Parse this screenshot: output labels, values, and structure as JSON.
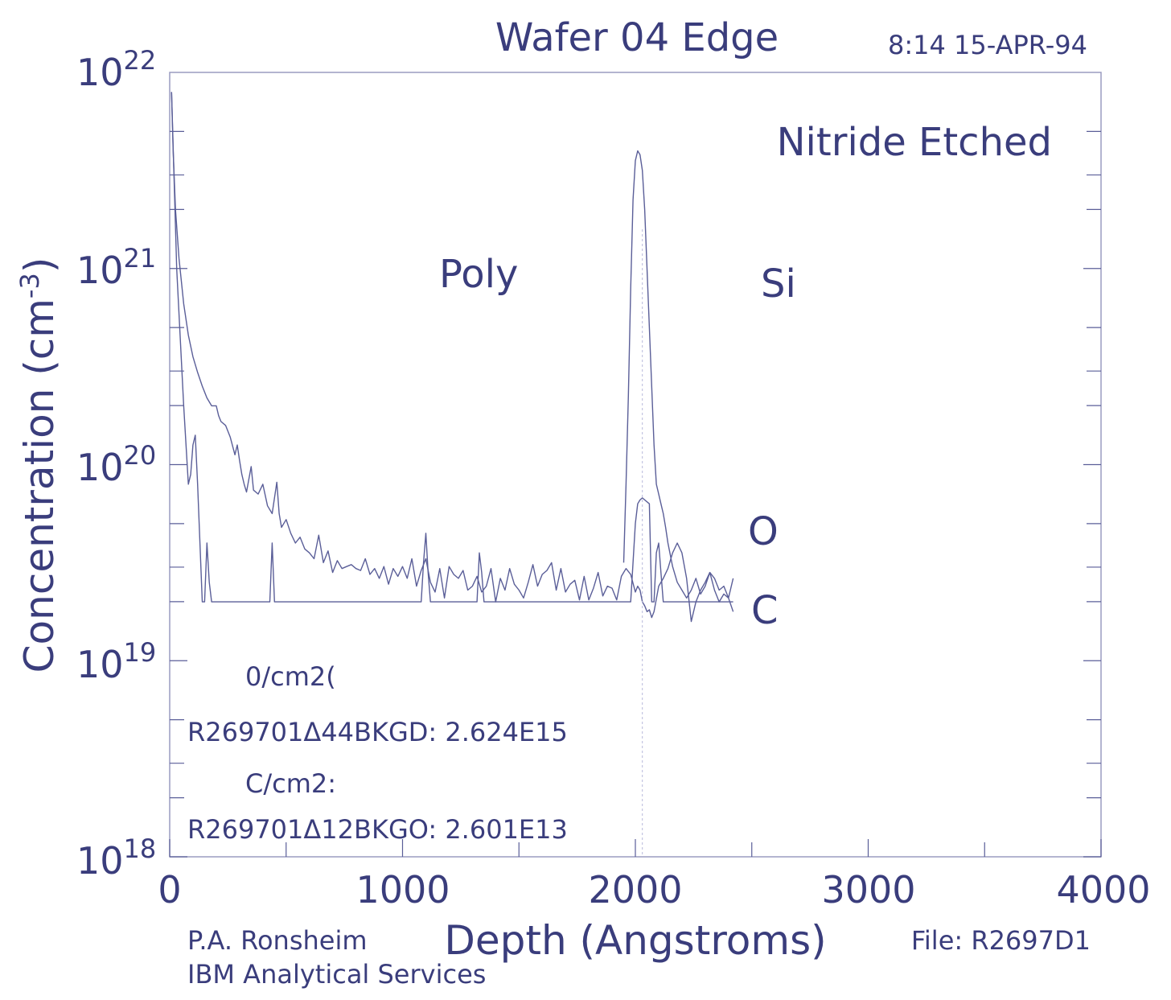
{
  "colors": {
    "ink": "#3a3d7c",
    "trace": "#5a5e98"
  },
  "header": {
    "title": "Wafer 04 Edge",
    "timestamp": "8:14 15-APR-94"
  },
  "annotations": {
    "condition": "Nitride Etched",
    "region_poly": "Poly",
    "region_si": "Si",
    "label_o": "O",
    "label_c": "C",
    "dose_o_header": "0/cm2(",
    "dose_o_value": "R269701Δ44BKGD: 2.624E15",
    "dose_c_header": "C/cm2:",
    "dose_c_value": "R269701Δ12BKGO: 2.601E13"
  },
  "footer": {
    "author": "P.A. Ronsheim",
    "org": "IBM Analytical Services",
    "file": "File: R2697D1"
  },
  "chart_data": {
    "type": "line",
    "title": "Wafer 04 Edge",
    "xlabel": "Depth (Angstroms)",
    "ylabel_main": "Concentration (cm",
    "ylabel_sup": "-3",
    "ylabel_close": ")",
    "xlim": [
      0,
      4000
    ],
    "ylim_log10": [
      18,
      22
    ],
    "y_scale": "log",
    "grid": false,
    "x_ticks": [
      "0",
      "1000",
      "2000",
      "3000",
      "4000"
    ],
    "y_ticks": [
      {
        "base": "10",
        "exp": "22"
      },
      {
        "base": "10",
        "exp": "21"
      },
      {
        "base": "10",
        "exp": "20"
      },
      {
        "base": "10",
        "exp": "19"
      },
      {
        "base": "10",
        "exp": "18"
      }
    ],
    "series": [
      {
        "name": "O",
        "x": [
          8,
          15,
          25,
          40,
          60,
          80,
          100,
          120,
          140,
          160,
          180,
          200,
          210,
          220,
          240,
          260,
          280,
          290,
          300,
          310,
          320,
          330,
          350,
          360,
          380,
          400,
          420,
          440,
          460,
          470,
          480,
          500,
          520,
          540,
          560,
          580,
          600,
          620,
          640,
          660,
          680,
          700,
          720,
          740,
          760,
          780,
          800,
          820,
          840,
          860,
          880,
          900,
          920,
          940,
          960,
          980,
          1000,
          1020,
          1040,
          1060,
          1080,
          1100,
          1120,
          1140,
          1160,
          1180,
          1200,
          1220,
          1240,
          1260,
          1280,
          1300,
          1320,
          1340,
          1360,
          1380,
          1400,
          1420,
          1440,
          1460,
          1480,
          1500,
          1520,
          1540,
          1560,
          1580,
          1600,
          1620,
          1640,
          1660,
          1680,
          1700,
          1720,
          1740,
          1760,
          1780,
          1800,
          1820,
          1840,
          1860,
          1880,
          1900,
          1920,
          1940,
          1960,
          1980,
          2000,
          2010,
          2020,
          2030,
          2040,
          2050,
          2060,
          2070,
          2080,
          2100,
          2120,
          2140,
          2160,
          2180,
          2200,
          2220,
          2240,
          2260,
          2280,
          2300,
          2320,
          2340,
          2360,
          2380,
          2400,
          2420
        ],
        "log10": [
          21.9,
          21.6,
          21.3,
          21.05,
          20.82,
          20.66,
          20.55,
          20.47,
          20.4,
          20.34,
          20.3,
          20.3,
          20.25,
          20.22,
          20.2,
          20.14,
          20.05,
          20.1,
          20.02,
          19.95,
          19.9,
          19.86,
          19.99,
          19.87,
          19.85,
          19.9,
          19.79,
          19.75,
          19.91,
          19.75,
          19.68,
          19.72,
          19.65,
          19.6,
          19.63,
          19.57,
          19.55,
          19.52,
          19.64,
          19.5,
          19.56,
          19.45,
          19.51,
          19.47,
          19.48,
          19.49,
          19.47,
          19.46,
          19.52,
          19.44,
          19.47,
          19.42,
          19.48,
          19.39,
          19.47,
          19.43,
          19.48,
          19.42,
          19.52,
          19.38,
          19.46,
          19.52,
          19.4,
          19.35,
          19.47,
          19.32,
          19.48,
          19.44,
          19.42,
          19.46,
          19.36,
          19.38,
          19.43,
          19.35,
          19.38,
          19.47,
          19.3,
          19.42,
          19.36,
          19.47,
          19.39,
          19.36,
          19.32,
          19.4,
          19.49,
          19.38,
          19.44,
          19.46,
          19.5,
          19.36,
          19.47,
          19.35,
          19.39,
          19.41,
          19.31,
          19.43,
          19.31,
          19.37,
          19.45,
          19.33,
          19.38,
          19.37,
          19.31,
          19.43,
          19.47,
          19.44,
          19.35,
          19.38,
          19.36,
          19.3,
          19.28,
          19.25,
          19.26,
          19.22,
          19.25,
          19.38,
          19.42,
          19.47,
          19.55,
          19.6,
          19.55,
          19.42,
          19.2,
          19.3,
          19.36,
          19.4,
          19.45,
          19.42,
          19.36,
          19.38,
          19.32,
          19.42,
          19.35,
          19.26
        ]
      },
      {
        "name": "Si",
        "x": [
          1950,
          1960,
          1970,
          1980,
          1990,
          2000,
          2010,
          2020,
          2030,
          2040,
          2050,
          2060,
          2070,
          2080,
          2090,
          2100,
          2110,
          2120,
          2130,
          2140,
          2160,
          2180,
          2200,
          2220,
          2240,
          2260,
          2280,
          2300,
          2320,
          2340,
          2360,
          2380,
          2400,
          2420
        ],
        "log10": [
          19.5,
          19.9,
          20.35,
          20.9,
          21.35,
          21.55,
          21.6,
          21.58,
          21.5,
          21.3,
          21.0,
          20.7,
          20.4,
          20.1,
          19.9,
          19.85,
          19.8,
          19.75,
          19.68,
          19.6,
          19.48,
          19.4,
          19.36,
          19.32,
          19.36,
          19.42,
          19.34,
          19.38,
          19.45,
          19.36,
          19.3,
          19.34,
          19.32,
          19.25
        ]
      },
      {
        "name": "C",
        "x": [
          8,
          30,
          60,
          80,
          90,
          100,
          110,
          120,
          140,
          150,
          160,
          170,
          180,
          200,
          430,
          440,
          450,
          460,
          470,
          1080,
          1090,
          1100,
          1110,
          1120,
          1320,
          1330,
          1340,
          1350,
          1360,
          1950,
          1960,
          1980,
          2000,
          2010,
          2020,
          2030,
          2040,
          2060,
          2070,
          2080,
          2090,
          2100,
          2110,
          2120,
          2130,
          2200,
          2300,
          2420
        ],
        "log10": [
          21.9,
          21.0,
          20.3,
          19.9,
          19.95,
          20.1,
          20.15,
          19.9,
          19.3,
          19.3,
          19.6,
          19.4,
          19.3,
          19.3,
          19.3,
          19.6,
          19.3,
          19.3,
          19.3,
          19.3,
          19.5,
          19.65,
          19.45,
          19.3,
          19.3,
          19.55,
          19.45,
          19.3,
          19.3,
          19.3,
          19.3,
          19.3,
          19.7,
          19.8,
          19.82,
          19.83,
          19.82,
          19.8,
          19.3,
          19.3,
          19.55,
          19.6,
          19.45,
          19.3,
          19.3,
          19.3,
          19.3,
          19.3
        ]
      }
    ]
  }
}
